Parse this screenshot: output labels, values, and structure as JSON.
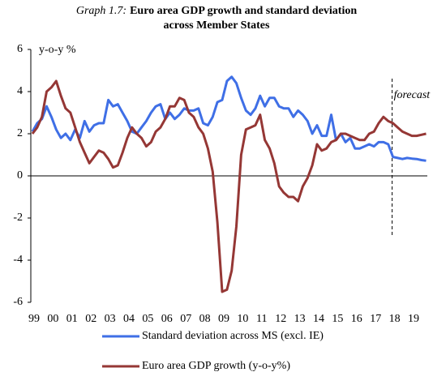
{
  "chart_data": {
    "type": "line",
    "title_label": "Graph 1.7:",
    "title_lines": [
      "Euro area GDP growth and standard deviation",
      "across Member States"
    ],
    "y_label": "y-o-y %",
    "categories": [
      "99",
      null,
      null,
      null,
      "00",
      null,
      null,
      null,
      "01",
      null,
      null,
      null,
      "02",
      null,
      null,
      null,
      "03",
      null,
      null,
      null,
      "04",
      null,
      null,
      null,
      "05",
      null,
      null,
      null,
      "06",
      null,
      null,
      null,
      "07",
      null,
      null,
      null,
      "08",
      null,
      null,
      null,
      "09",
      null,
      null,
      null,
      "10",
      null,
      null,
      null,
      "11",
      null,
      null,
      null,
      "12",
      null,
      null,
      null,
      "13",
      null,
      null,
      null,
      "14",
      null,
      null,
      null,
      "15",
      null,
      null,
      null,
      "16",
      null,
      null,
      null,
      "17",
      null,
      null,
      null,
      "18",
      null,
      null,
      null,
      "19",
      null,
      null,
      null
    ],
    "series": [
      {
        "name": "Standard deviation across MS (excl. IE)",
        "color": "#3f6fe6",
        "values": [
          2.1,
          2.5,
          2.7,
          3.3,
          2.8,
          2.2,
          1.8,
          2.0,
          1.7,
          2.2,
          1.8,
          2.6,
          2.1,
          2.4,
          2.5,
          2.5,
          3.6,
          3.3,
          3.4,
          3.0,
          2.6,
          2.1,
          2.0,
          2.3,
          2.6,
          3.0,
          3.3,
          3.4,
          2.7,
          3.0,
          2.7,
          2.9,
          3.2,
          3.1,
          3.1,
          3.2,
          2.5,
          2.4,
          2.8,
          3.5,
          3.6,
          4.5,
          4.7,
          4.4,
          3.7,
          3.1,
          2.9,
          3.2,
          3.8,
          3.3,
          3.7,
          3.7,
          3.3,
          3.2,
          3.2,
          2.8,
          3.1,
          2.9,
          2.6,
          2.0,
          2.4,
          1.9,
          1.9,
          2.9,
          1.7,
          2.0,
          1.6,
          1.8,
          1.3,
          1.3,
          1.4,
          1.5,
          1.4,
          1.6,
          1.6,
          1.5,
          0.9,
          0.85,
          0.8,
          0.85,
          0.82,
          0.8,
          0.75,
          0.72
        ]
      },
      {
        "name": "Euro area GDP growth (y-o-y%)",
        "color": "#953735",
        "values": [
          2.0,
          2.3,
          2.8,
          4.0,
          4.2,
          4.5,
          3.8,
          3.2,
          3.0,
          2.3,
          1.6,
          1.1,
          0.6,
          0.9,
          1.2,
          1.1,
          0.8,
          0.4,
          0.5,
          1.1,
          1.8,
          2.3,
          2.0,
          1.8,
          1.4,
          1.6,
          2.1,
          2.3,
          2.7,
          3.3,
          3.3,
          3.7,
          3.6,
          3.0,
          2.8,
          2.3,
          2.0,
          1.3,
          0.2,
          -2.2,
          -5.5,
          -5.4,
          -4.5,
          -2.4,
          1.0,
          2.2,
          2.3,
          2.4,
          2.9,
          1.7,
          1.3,
          0.6,
          -0.5,
          -0.8,
          -1.0,
          -1.0,
          -1.2,
          -0.5,
          -0.1,
          0.5,
          1.5,
          1.2,
          1.3,
          1.6,
          1.7,
          2.0,
          2.0,
          1.9,
          1.8,
          1.7,
          1.7,
          2.0,
          2.1,
          2.5,
          2.8,
          2.6,
          2.5,
          2.3,
          2.1,
          2.0,
          1.9,
          1.9,
          1.95,
          2.0
        ]
      }
    ],
    "ylim": [
      -6,
      6
    ],
    "yticks": [
      -6,
      -4,
      -2,
      0,
      2,
      4,
      6
    ],
    "grid": false,
    "annotations": [
      {
        "text": "forecast",
        "x": "18"
      }
    ],
    "legend": "bottom"
  }
}
